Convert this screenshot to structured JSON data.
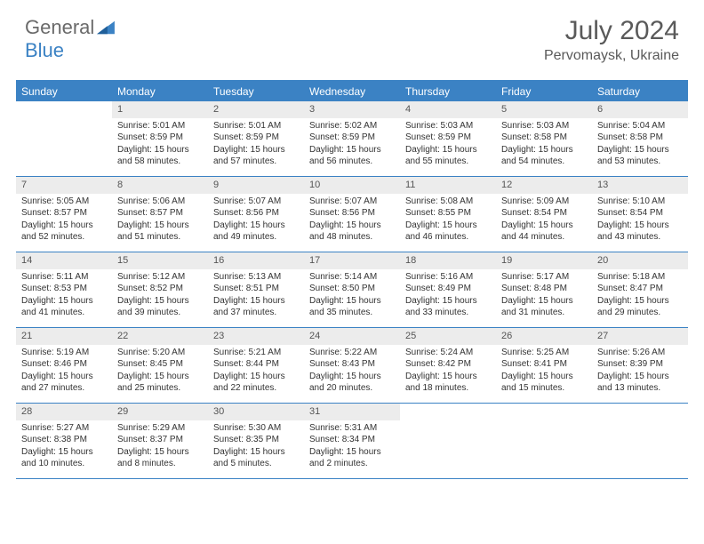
{
  "brand": {
    "part1": "General",
    "part2": "Blue"
  },
  "title": "July 2024",
  "location": "Pervomaysk, Ukraine",
  "colors": {
    "accent": "#3b82c4",
    "daybar": "#ececec",
    "text": "#333333",
    "heading": "#5a5a5a",
    "white": "#ffffff"
  },
  "weekdays": [
    "Sunday",
    "Monday",
    "Tuesday",
    "Wednesday",
    "Thursday",
    "Friday",
    "Saturday"
  ],
  "weeks": [
    [
      {
        "n": "",
        "lines": []
      },
      {
        "n": "1",
        "lines": [
          "Sunrise: 5:01 AM",
          "Sunset: 8:59 PM",
          "Daylight: 15 hours",
          "and 58 minutes."
        ]
      },
      {
        "n": "2",
        "lines": [
          "Sunrise: 5:01 AM",
          "Sunset: 8:59 PM",
          "Daylight: 15 hours",
          "and 57 minutes."
        ]
      },
      {
        "n": "3",
        "lines": [
          "Sunrise: 5:02 AM",
          "Sunset: 8:59 PM",
          "Daylight: 15 hours",
          "and 56 minutes."
        ]
      },
      {
        "n": "4",
        "lines": [
          "Sunrise: 5:03 AM",
          "Sunset: 8:59 PM",
          "Daylight: 15 hours",
          "and 55 minutes."
        ]
      },
      {
        "n": "5",
        "lines": [
          "Sunrise: 5:03 AM",
          "Sunset: 8:58 PM",
          "Daylight: 15 hours",
          "and 54 minutes."
        ]
      },
      {
        "n": "6",
        "lines": [
          "Sunrise: 5:04 AM",
          "Sunset: 8:58 PM",
          "Daylight: 15 hours",
          "and 53 minutes."
        ]
      }
    ],
    [
      {
        "n": "7",
        "lines": [
          "Sunrise: 5:05 AM",
          "Sunset: 8:57 PM",
          "Daylight: 15 hours",
          "and 52 minutes."
        ]
      },
      {
        "n": "8",
        "lines": [
          "Sunrise: 5:06 AM",
          "Sunset: 8:57 PM",
          "Daylight: 15 hours",
          "and 51 minutes."
        ]
      },
      {
        "n": "9",
        "lines": [
          "Sunrise: 5:07 AM",
          "Sunset: 8:56 PM",
          "Daylight: 15 hours",
          "and 49 minutes."
        ]
      },
      {
        "n": "10",
        "lines": [
          "Sunrise: 5:07 AM",
          "Sunset: 8:56 PM",
          "Daylight: 15 hours",
          "and 48 minutes."
        ]
      },
      {
        "n": "11",
        "lines": [
          "Sunrise: 5:08 AM",
          "Sunset: 8:55 PM",
          "Daylight: 15 hours",
          "and 46 minutes."
        ]
      },
      {
        "n": "12",
        "lines": [
          "Sunrise: 5:09 AM",
          "Sunset: 8:54 PM",
          "Daylight: 15 hours",
          "and 44 minutes."
        ]
      },
      {
        "n": "13",
        "lines": [
          "Sunrise: 5:10 AM",
          "Sunset: 8:54 PM",
          "Daylight: 15 hours",
          "and 43 minutes."
        ]
      }
    ],
    [
      {
        "n": "14",
        "lines": [
          "Sunrise: 5:11 AM",
          "Sunset: 8:53 PM",
          "Daylight: 15 hours",
          "and 41 minutes."
        ]
      },
      {
        "n": "15",
        "lines": [
          "Sunrise: 5:12 AM",
          "Sunset: 8:52 PM",
          "Daylight: 15 hours",
          "and 39 minutes."
        ]
      },
      {
        "n": "16",
        "lines": [
          "Sunrise: 5:13 AM",
          "Sunset: 8:51 PM",
          "Daylight: 15 hours",
          "and 37 minutes."
        ]
      },
      {
        "n": "17",
        "lines": [
          "Sunrise: 5:14 AM",
          "Sunset: 8:50 PM",
          "Daylight: 15 hours",
          "and 35 minutes."
        ]
      },
      {
        "n": "18",
        "lines": [
          "Sunrise: 5:16 AM",
          "Sunset: 8:49 PM",
          "Daylight: 15 hours",
          "and 33 minutes."
        ]
      },
      {
        "n": "19",
        "lines": [
          "Sunrise: 5:17 AM",
          "Sunset: 8:48 PM",
          "Daylight: 15 hours",
          "and 31 minutes."
        ]
      },
      {
        "n": "20",
        "lines": [
          "Sunrise: 5:18 AM",
          "Sunset: 8:47 PM",
          "Daylight: 15 hours",
          "and 29 minutes."
        ]
      }
    ],
    [
      {
        "n": "21",
        "lines": [
          "Sunrise: 5:19 AM",
          "Sunset: 8:46 PM",
          "Daylight: 15 hours",
          "and 27 minutes."
        ]
      },
      {
        "n": "22",
        "lines": [
          "Sunrise: 5:20 AM",
          "Sunset: 8:45 PM",
          "Daylight: 15 hours",
          "and 25 minutes."
        ]
      },
      {
        "n": "23",
        "lines": [
          "Sunrise: 5:21 AM",
          "Sunset: 8:44 PM",
          "Daylight: 15 hours",
          "and 22 minutes."
        ]
      },
      {
        "n": "24",
        "lines": [
          "Sunrise: 5:22 AM",
          "Sunset: 8:43 PM",
          "Daylight: 15 hours",
          "and 20 minutes."
        ]
      },
      {
        "n": "25",
        "lines": [
          "Sunrise: 5:24 AM",
          "Sunset: 8:42 PM",
          "Daylight: 15 hours",
          "and 18 minutes."
        ]
      },
      {
        "n": "26",
        "lines": [
          "Sunrise: 5:25 AM",
          "Sunset: 8:41 PM",
          "Daylight: 15 hours",
          "and 15 minutes."
        ]
      },
      {
        "n": "27",
        "lines": [
          "Sunrise: 5:26 AM",
          "Sunset: 8:39 PM",
          "Daylight: 15 hours",
          "and 13 minutes."
        ]
      }
    ],
    [
      {
        "n": "28",
        "lines": [
          "Sunrise: 5:27 AM",
          "Sunset: 8:38 PM",
          "Daylight: 15 hours",
          "and 10 minutes."
        ]
      },
      {
        "n": "29",
        "lines": [
          "Sunrise: 5:29 AM",
          "Sunset: 8:37 PM",
          "Daylight: 15 hours",
          "and 8 minutes."
        ]
      },
      {
        "n": "30",
        "lines": [
          "Sunrise: 5:30 AM",
          "Sunset: 8:35 PM",
          "Daylight: 15 hours",
          "and 5 minutes."
        ]
      },
      {
        "n": "31",
        "lines": [
          "Sunrise: 5:31 AM",
          "Sunset: 8:34 PM",
          "Daylight: 15 hours",
          "and 2 minutes."
        ]
      },
      {
        "n": "",
        "lines": []
      },
      {
        "n": "",
        "lines": []
      },
      {
        "n": "",
        "lines": []
      }
    ]
  ]
}
